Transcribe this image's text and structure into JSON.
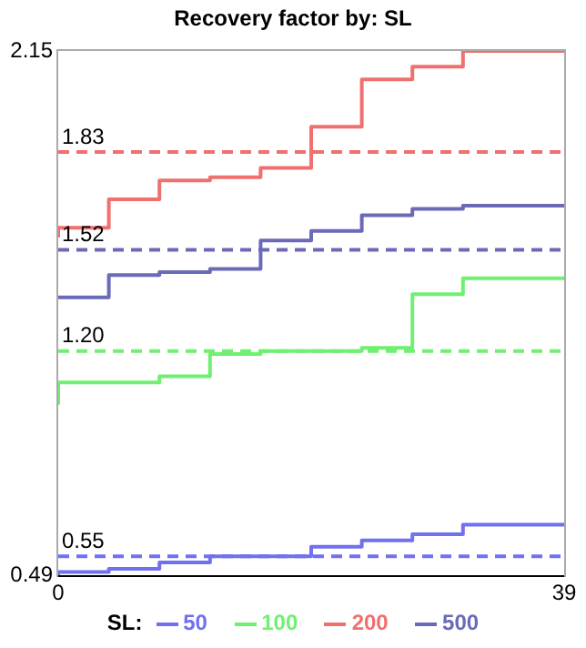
{
  "chart_data": {
    "type": "step",
    "title": "Recovery factor by: SL",
    "legend_title": "SL:",
    "legend": "bottom",
    "x": [
      0,
      3.9,
      7.8,
      11.7,
      15.6,
      19.5,
      23.4,
      27.3,
      31.2,
      35.1,
      39
    ],
    "xlim": [
      0,
      39
    ],
    "xticks": [
      0,
      39
    ],
    "ylim": [
      0.49,
      2.15
    ],
    "yticks": [
      0.49,
      2.15
    ],
    "marker": "none",
    "line_style": "solid",
    "series": [
      {
        "name": "50",
        "color": "#7070f0",
        "values": [
          0.49,
          0.5,
          0.51,
          0.53,
          0.55,
          0.55,
          0.58,
          0.6,
          0.62,
          0.65,
          0.65
        ]
      },
      {
        "name": "100",
        "color": "#70f070",
        "values": [
          1.03,
          1.1,
          1.1,
          1.12,
          1.19,
          1.2,
          1.2,
          1.21,
          1.38,
          1.43,
          1.43
        ]
      },
      {
        "name": "200",
        "color": "#f07070",
        "values": [
          1.56,
          1.59,
          1.68,
          1.74,
          1.75,
          1.78,
          1.91,
          2.06,
          2.1,
          2.15,
          2.15
        ]
      },
      {
        "name": "500",
        "color": "#6a6ab8",
        "values": [
          1.37,
          1.37,
          1.44,
          1.45,
          1.46,
          1.55,
          1.58,
          1.63,
          1.65,
          1.66,
          1.66
        ]
      }
    ],
    "ref_lines": [
      {
        "axis": "y",
        "value": 1.83,
        "label": "1.83",
        "color": "#f07070",
        "line_style": "dashed"
      },
      {
        "axis": "y",
        "value": 1.52,
        "label": "1.52",
        "color": "#6a6ab8",
        "line_style": "dashed"
      },
      {
        "axis": "y",
        "value": 1.2,
        "label": "1.20",
        "color": "#70f070",
        "line_style": "dashed"
      },
      {
        "axis": "y",
        "value": 0.55,
        "label": "0.55",
        "color": "#7070f0",
        "line_style": "dashed"
      }
    ]
  }
}
